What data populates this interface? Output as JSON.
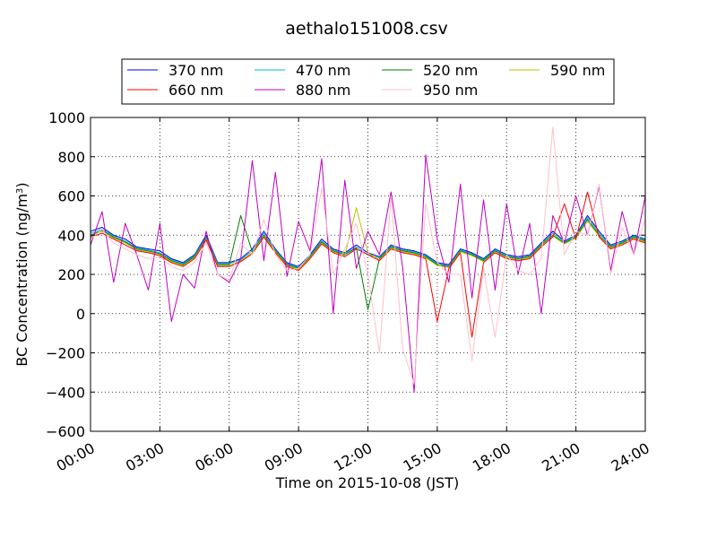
{
  "chart_data": {
    "type": "line",
    "title": "aethalo151008.csv",
    "xlabel": "Time on 2015-10-08 (JST)",
    "ylabel": {
      "prefix": "BC Concentration (ng/m",
      "superscript": "3",
      "suffix": ")"
    },
    "xlim": [
      "00:00",
      "24:00"
    ],
    "ylim": [
      -600,
      1000
    ],
    "xticks": [
      "00:00",
      "03:00",
      "06:00",
      "09:00",
      "12:00",
      "15:00",
      "18:00",
      "21:00",
      "24:00"
    ],
    "yticks": [
      "−600",
      "−400",
      "−200",
      "0",
      "200",
      "400",
      "600",
      "800",
      "1000"
    ],
    "grid": true,
    "legend_position": "top-center",
    "x_unit": "hours (JST)",
    "series": [
      {
        "name": "370 nm",
        "color": "#0000ff",
        "x": [
          0.0,
          0.5,
          1.0,
          1.5,
          2.0,
          2.5,
          3.0,
          3.5,
          4.0,
          4.5,
          5.0,
          5.5,
          6.0,
          6.5,
          7.0,
          7.5,
          8.0,
          8.5,
          9.0,
          9.5,
          10.0,
          10.5,
          11.0,
          11.5,
          12.0,
          12.5,
          13.0,
          13.5,
          14.0,
          14.5,
          15.0,
          15.5,
          16.0,
          16.5,
          17.0,
          17.5,
          18.0,
          18.5,
          19.0,
          19.5,
          20.0,
          20.5,
          21.0,
          21.5,
          22.0,
          22.5,
          23.0,
          23.5,
          24.0
        ],
        "values": [
          420,
          440,
          400,
          380,
          340,
          330,
          320,
          280,
          260,
          300,
          400,
          260,
          260,
          280,
          330,
          420,
          330,
          260,
          240,
          300,
          380,
          330,
          310,
          350,
          310,
          290,
          350,
          330,
          320,
          300,
          260,
          250,
          330,
          310,
          280,
          330,
          300,
          290,
          300,
          360,
          420,
          370,
          400,
          500,
          420,
          350,
          370,
          400,
          380
        ]
      },
      {
        "name": "470 nm",
        "color": "#00bfbf",
        "x": [
          0.0,
          0.5,
          1.0,
          1.5,
          2.0,
          2.5,
          3.0,
          3.5,
          4.0,
          4.5,
          5.0,
          5.5,
          6.0,
          6.5,
          7.0,
          7.5,
          8.0,
          8.5,
          9.0,
          9.5,
          10.0,
          10.5,
          11.0,
          11.5,
          12.0,
          12.5,
          13.0,
          13.5,
          14.0,
          14.5,
          15.0,
          15.5,
          16.0,
          16.5,
          17.0,
          17.5,
          18.0,
          18.5,
          19.0,
          19.5,
          20.0,
          20.5,
          21.0,
          21.5,
          22.0,
          22.5,
          23.0,
          23.5,
          24.0
        ],
        "values": [
          410,
          430,
          395,
          370,
          335,
          325,
          310,
          275,
          255,
          295,
          390,
          255,
          255,
          275,
          320,
          410,
          325,
          255,
          235,
          295,
          370,
          325,
          305,
          340,
          300,
          285,
          345,
          325,
          315,
          295,
          255,
          245,
          325,
          305,
          275,
          325,
          295,
          285,
          295,
          355,
          410,
          365,
          395,
          490,
          410,
          345,
          365,
          395,
          375
        ]
      },
      {
        "name": "520 nm",
        "color": "#008000",
        "x": [
          0.0,
          0.5,
          1.0,
          1.5,
          2.0,
          2.5,
          3.0,
          3.5,
          4.0,
          4.5,
          5.0,
          5.5,
          6.0,
          6.5,
          7.0,
          7.5,
          8.0,
          8.5,
          9.0,
          9.5,
          10.0,
          10.5,
          11.0,
          11.5,
          12.0,
          12.5,
          13.0,
          13.5,
          14.0,
          14.5,
          15.0,
          15.5,
          16.0,
          16.5,
          17.0,
          17.5,
          18.0,
          18.5,
          19.0,
          19.5,
          20.0,
          20.5,
          21.0,
          21.5,
          22.0,
          22.5,
          23.0,
          23.5,
          24.0
        ],
        "values": [
          400,
          425,
          390,
          365,
          330,
          320,
          305,
          270,
          250,
          290,
          385,
          250,
          250,
          500,
          315,
          400,
          320,
          250,
          230,
          290,
          365,
          320,
          300,
          335,
          20,
          280,
          340,
          320,
          310,
          290,
          250,
          240,
          320,
          300,
          270,
          320,
          290,
          280,
          290,
          350,
          400,
          360,
          390,
          480,
          400,
          340,
          360,
          390,
          370
        ]
      },
      {
        "name": "590 nm",
        "color": "#bfbf00",
        "x": [
          0.0,
          0.5,
          1.0,
          1.5,
          2.0,
          2.5,
          3.0,
          3.5,
          4.0,
          4.5,
          5.0,
          5.5,
          6.0,
          6.5,
          7.0,
          7.5,
          8.0,
          8.5,
          9.0,
          9.5,
          10.0,
          10.5,
          11.0,
          11.5,
          12.0,
          12.5,
          13.0,
          13.5,
          14.0,
          14.5,
          15.0,
          15.5,
          16.0,
          16.5,
          17.0,
          17.5,
          18.0,
          18.5,
          19.0,
          19.5,
          20.0,
          20.5,
          21.0,
          21.5,
          22.0,
          22.5,
          23.0,
          23.5,
          24.0
        ],
        "values": [
          395,
          420,
          385,
          360,
          325,
          315,
          300,
          265,
          245,
          285,
          380,
          245,
          245,
          270,
          310,
          395,
          315,
          245,
          225,
          285,
          360,
          315,
          295,
          540,
          310,
          275,
          335,
          315,
          305,
          285,
          245,
          235,
          315,
          295,
          265,
          315,
          285,
          275,
          285,
          345,
          395,
          355,
          385,
          470,
          395,
          335,
          355,
          385,
          365
        ]
      },
      {
        "name": "660 nm",
        "color": "#ff0000",
        "x": [
          0.0,
          0.5,
          1.0,
          1.5,
          2.0,
          2.5,
          3.0,
          3.5,
          4.0,
          4.5,
          5.0,
          5.5,
          6.0,
          6.5,
          7.0,
          7.5,
          8.0,
          8.5,
          9.0,
          9.5,
          10.0,
          10.5,
          11.0,
          11.5,
          12.0,
          12.5,
          13.0,
          13.5,
          14.0,
          14.5,
          15.0,
          15.5,
          16.0,
          16.5,
          17.0,
          17.5,
          18.0,
          18.5,
          19.0,
          19.5,
          20.0,
          20.5,
          21.0,
          21.5,
          22.0,
          22.5,
          23.0,
          23.5,
          24.0
        ],
        "values": [
          390,
          410,
          380,
          350,
          320,
          310,
          295,
          260,
          240,
          280,
          375,
          240,
          240,
          265,
          305,
          390,
          310,
          240,
          220,
          280,
          355,
          310,
          290,
          330,
          300,
          270,
          330,
          310,
          300,
          280,
          -40,
          230,
          310,
          -120,
          260,
          310,
          280,
          270,
          280,
          340,
          390,
          560,
          380,
          620,
          390,
          330,
          350,
          380,
          360
        ]
      },
      {
        "name": "880 nm",
        "color": "#bf00bf",
        "x": [
          0.0,
          0.5,
          1.0,
          1.5,
          2.0,
          2.5,
          3.0,
          3.5,
          4.0,
          4.5,
          5.0,
          5.5,
          6.0,
          6.5,
          7.0,
          7.5,
          8.0,
          8.5,
          9.0,
          9.5,
          10.0,
          10.5,
          11.0,
          11.5,
          12.0,
          12.5,
          13.0,
          13.5,
          14.0,
          14.5,
          15.0,
          15.5,
          16.0,
          16.5,
          17.0,
          17.5,
          18.0,
          18.5,
          19.0,
          19.5,
          20.0,
          20.5,
          21.0,
          21.5,
          22.0,
          22.5,
          23.0,
          23.5,
          24.0
        ],
        "values": [
          350,
          520,
          160,
          460,
          300,
          120,
          460,
          -40,
          200,
          130,
          420,
          200,
          160,
          280,
          780,
          270,
          720,
          190,
          470,
          320,
          790,
          0,
          680,
          230,
          420,
          300,
          620,
          240,
          -400,
          810,
          380,
          160,
          660,
          80,
          580,
          120,
          560,
          200,
          460,
          0,
          500,
          360,
          600,
          400,
          650,
          220,
          520,
          300,
          600
        ]
      },
      {
        "name": "950 nm",
        "color": "#ffc0cb",
        "x": [
          0.0,
          0.5,
          1.0,
          1.5,
          2.0,
          2.5,
          3.0,
          3.5,
          4.0,
          4.5,
          5.0,
          5.5,
          6.0,
          6.5,
          7.0,
          7.5,
          8.0,
          8.5,
          9.0,
          9.5,
          10.0,
          10.5,
          11.0,
          11.5,
          12.0,
          12.5,
          13.0,
          13.5,
          14.0,
          14.5,
          15.0,
          15.5,
          16.0,
          16.5,
          17.0,
          17.5,
          18.0,
          18.5,
          19.0,
          19.5,
          20.0,
          20.5,
          21.0,
          21.5,
          22.0,
          22.5,
          23.0,
          23.5,
          24.0
        ],
        "values": [
          380,
          430,
          360,
          330,
          300,
          280,
          290,
          240,
          220,
          260,
          360,
          200,
          170,
          360,
          300,
          480,
          300,
          220,
          230,
          300,
          640,
          200,
          330,
          460,
          200,
          -200,
          600,
          -180,
          -360,
          560,
          260,
          200,
          200,
          -240,
          230,
          -120,
          300,
          220,
          200,
          280,
          950,
          300,
          420,
          400,
          660,
          200,
          440,
          300,
          480
        ]
      }
    ]
  }
}
